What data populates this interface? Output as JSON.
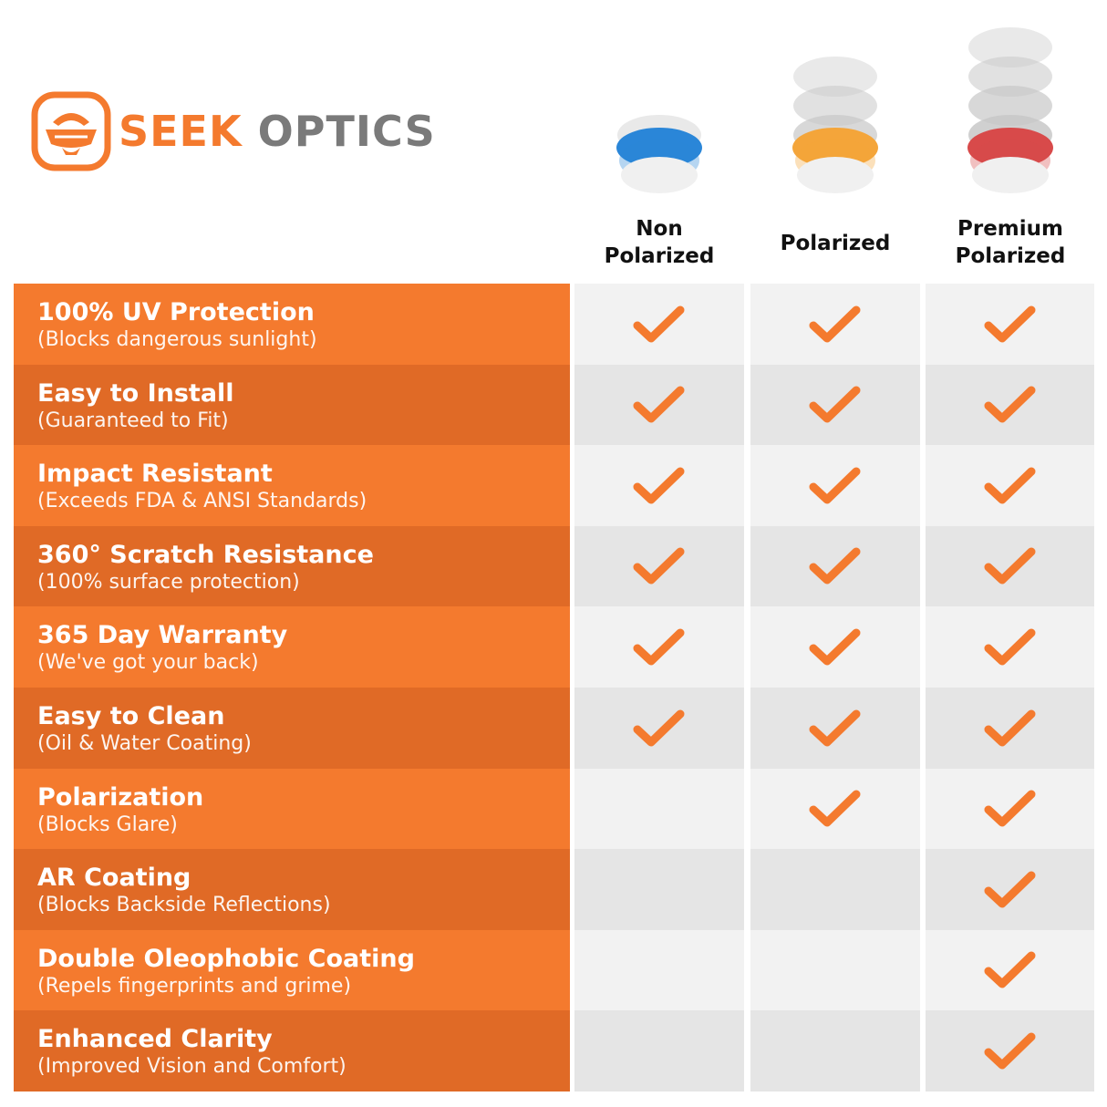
{
  "brand": {
    "name_part1": "SEEK",
    "name_part2": "OPTICS",
    "accent": "#f47a2e",
    "gray": "#7a7a7a"
  },
  "columns": [
    {
      "label_line1": "Non",
      "label_line2": "Polarized",
      "lens_color": "#2a86d8"
    },
    {
      "label_line1": "",
      "label_line2": "Polarized",
      "lens_color": "#f4a53a"
    },
    {
      "label_line1": "Premium",
      "label_line2": "Polarized",
      "lens_color": "#d84a4a"
    }
  ],
  "check_icon": "checkmark-icon",
  "check_color": "#f47a2e",
  "rows": [
    {
      "title": "100% UV Protection",
      "subtitle": "(Blocks dangerous sunlight)",
      "checks": [
        true,
        true,
        true
      ]
    },
    {
      "title": "Easy to Install",
      "subtitle": "(Guaranteed to Fit)",
      "checks": [
        true,
        true,
        true
      ]
    },
    {
      "title": "Impact Resistant",
      "subtitle": "(Exceeds FDA & ANSI Standards)",
      "checks": [
        true,
        true,
        true
      ]
    },
    {
      "title": "360° Scratch Resistance",
      "subtitle": "(100% surface protection)",
      "checks": [
        true,
        true,
        true
      ]
    },
    {
      "title": "365 Day Warranty",
      "subtitle": "(We've got your back)",
      "checks": [
        true,
        true,
        true
      ]
    },
    {
      "title": "Easy to Clean",
      "subtitle": "(Oil & Water Coating)",
      "checks": [
        true,
        true,
        true
      ]
    },
    {
      "title": "Polarization",
      "subtitle": "(Blocks Glare)",
      "checks": [
        false,
        true,
        true
      ]
    },
    {
      "title": "AR Coating",
      "subtitle": "(Blocks Backside Reflections)",
      "checks": [
        false,
        false,
        true
      ]
    },
    {
      "title": "Double Oleophobic Coating",
      "subtitle": "(Repels fingerprints and grime)",
      "checks": [
        false,
        false,
        true
      ]
    },
    {
      "title": "Enhanced Clarity",
      "subtitle": "(Improved Vision and Comfort)",
      "checks": [
        false,
        false,
        true
      ]
    }
  ]
}
